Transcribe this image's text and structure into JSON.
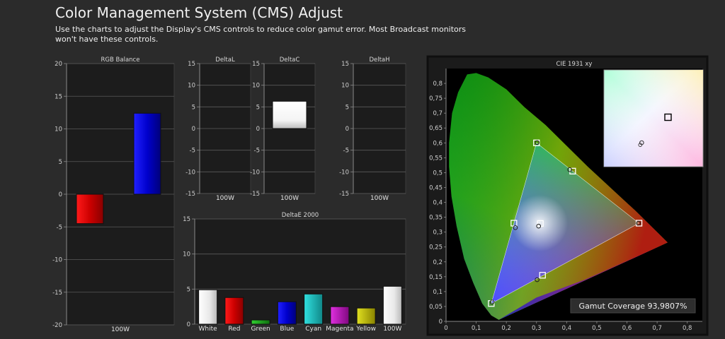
{
  "header": {
    "title": "Color Management System (CMS) Adjust",
    "description": "Use the charts to adjust the Display's CMS controls to reduce color gamut error. Most Broadcast monitors won't have these controls."
  },
  "colors": {
    "background": "#2b2b2b",
    "panel": "#1b1b1b",
    "red": "#e00000",
    "blue": "#0000e6",
    "green": "#10b010",
    "cyan": "#10c8c8",
    "magenta": "#c010c0",
    "yellow": "#c8c000",
    "white": "#f0f0f0"
  },
  "chart_data": [
    {
      "id": "rgb_balance",
      "type": "bar",
      "title": "RGB Balance",
      "categories": [
        "100W"
      ],
      "series": [
        {
          "color": "red",
          "values": [
            -4.5
          ]
        },
        {
          "color": "blue",
          "values": [
            12.4
          ]
        }
      ],
      "ylim": [
        -20,
        20
      ],
      "yticks": [
        "20",
        "15",
        "10",
        "5",
        "0",
        "-5",
        "-10",
        "-15",
        "-20"
      ],
      "grid": true
    },
    {
      "id": "delta_l",
      "type": "bar",
      "title": "DeltaL",
      "categories": [
        "100W"
      ],
      "values": [
        0
      ],
      "ylim": [
        -15,
        15
      ],
      "yticks": [
        "15",
        "10",
        "5",
        "0",
        "-5",
        "-10",
        "-15"
      ],
      "grid": true
    },
    {
      "id": "delta_c",
      "type": "bar",
      "title": "DeltaC",
      "categories": [
        "100W"
      ],
      "values": [
        6.3
      ],
      "ylim": [
        -15,
        15
      ],
      "yticks": [
        "15",
        "10",
        "5",
        "0",
        "-5",
        "-10",
        "-15"
      ],
      "grid": true
    },
    {
      "id": "delta_h",
      "type": "bar",
      "title": "DeltaH",
      "categories": [
        "100W"
      ],
      "values": [
        0
      ],
      "ylim": [
        -15,
        15
      ],
      "yticks": [
        "15",
        "10",
        "5",
        "0",
        "-5",
        "-10",
        "-15"
      ],
      "grid": true
    },
    {
      "id": "delta_e_2000",
      "type": "bar",
      "title": "DeltaE 2000",
      "categories": [
        "White",
        "Red",
        "Green",
        "Blue",
        "Cyan",
        "Magenta",
        "Yellow",
        "100W"
      ],
      "values": [
        4.9,
        3.8,
        0.6,
        3.2,
        4.3,
        2.5,
        2.3,
        5.4
      ],
      "colors": [
        "white",
        "red",
        "green",
        "blue",
        "cyan",
        "magenta",
        "yellow",
        "white"
      ],
      "ylim": [
        0,
        15
      ],
      "yticks": [
        "15",
        "10",
        "5",
        "0"
      ],
      "grid": true
    },
    {
      "id": "cie_1931",
      "type": "scatter",
      "title": "CIE 1931 xy",
      "xlim": [
        0,
        0.85
      ],
      "ylim": [
        0,
        0.85
      ],
      "xticks": [
        "0",
        "0,1",
        "0,2",
        "0,3",
        "0,4",
        "0,5",
        "0,6",
        "0,7",
        "0,8"
      ],
      "yticks": [
        "0,8",
        "0,75",
        "0,7",
        "0,65",
        "0,6",
        "0,55",
        "0,5",
        "0,45",
        "0,4",
        "0,35",
        "0,3",
        "0,25",
        "0,2",
        "0,15",
        "0,1",
        "0,05",
        "0"
      ],
      "targets": [
        {
          "name": "Red",
          "x": 0.64,
          "y": 0.33
        },
        {
          "name": "Green",
          "x": 0.3,
          "y": 0.6
        },
        {
          "name": "Blue",
          "x": 0.15,
          "y": 0.06
        },
        {
          "name": "Cyan",
          "x": 0.225,
          "y": 0.33
        },
        {
          "name": "Magenta",
          "x": 0.32,
          "y": 0.155
        },
        {
          "name": "Yellow",
          "x": 0.42,
          "y": 0.505
        },
        {
          "name": "White",
          "x": 0.3127,
          "y": 0.329
        }
      ],
      "measured": [
        {
          "name": "Red",
          "x": 0.638,
          "y": 0.33
        },
        {
          "name": "Green",
          "x": 0.302,
          "y": 0.601
        },
        {
          "name": "Blue",
          "x": 0.153,
          "y": 0.065
        },
        {
          "name": "Cyan",
          "x": 0.23,
          "y": 0.315
        },
        {
          "name": "Magenta",
          "x": 0.302,
          "y": 0.14
        },
        {
          "name": "Yellow",
          "x": 0.41,
          "y": 0.51
        },
        {
          "name": "White",
          "x": 0.307,
          "y": 0.32
        }
      ],
      "gamut_coverage": "Gamut Coverage 93,9807%"
    }
  ]
}
